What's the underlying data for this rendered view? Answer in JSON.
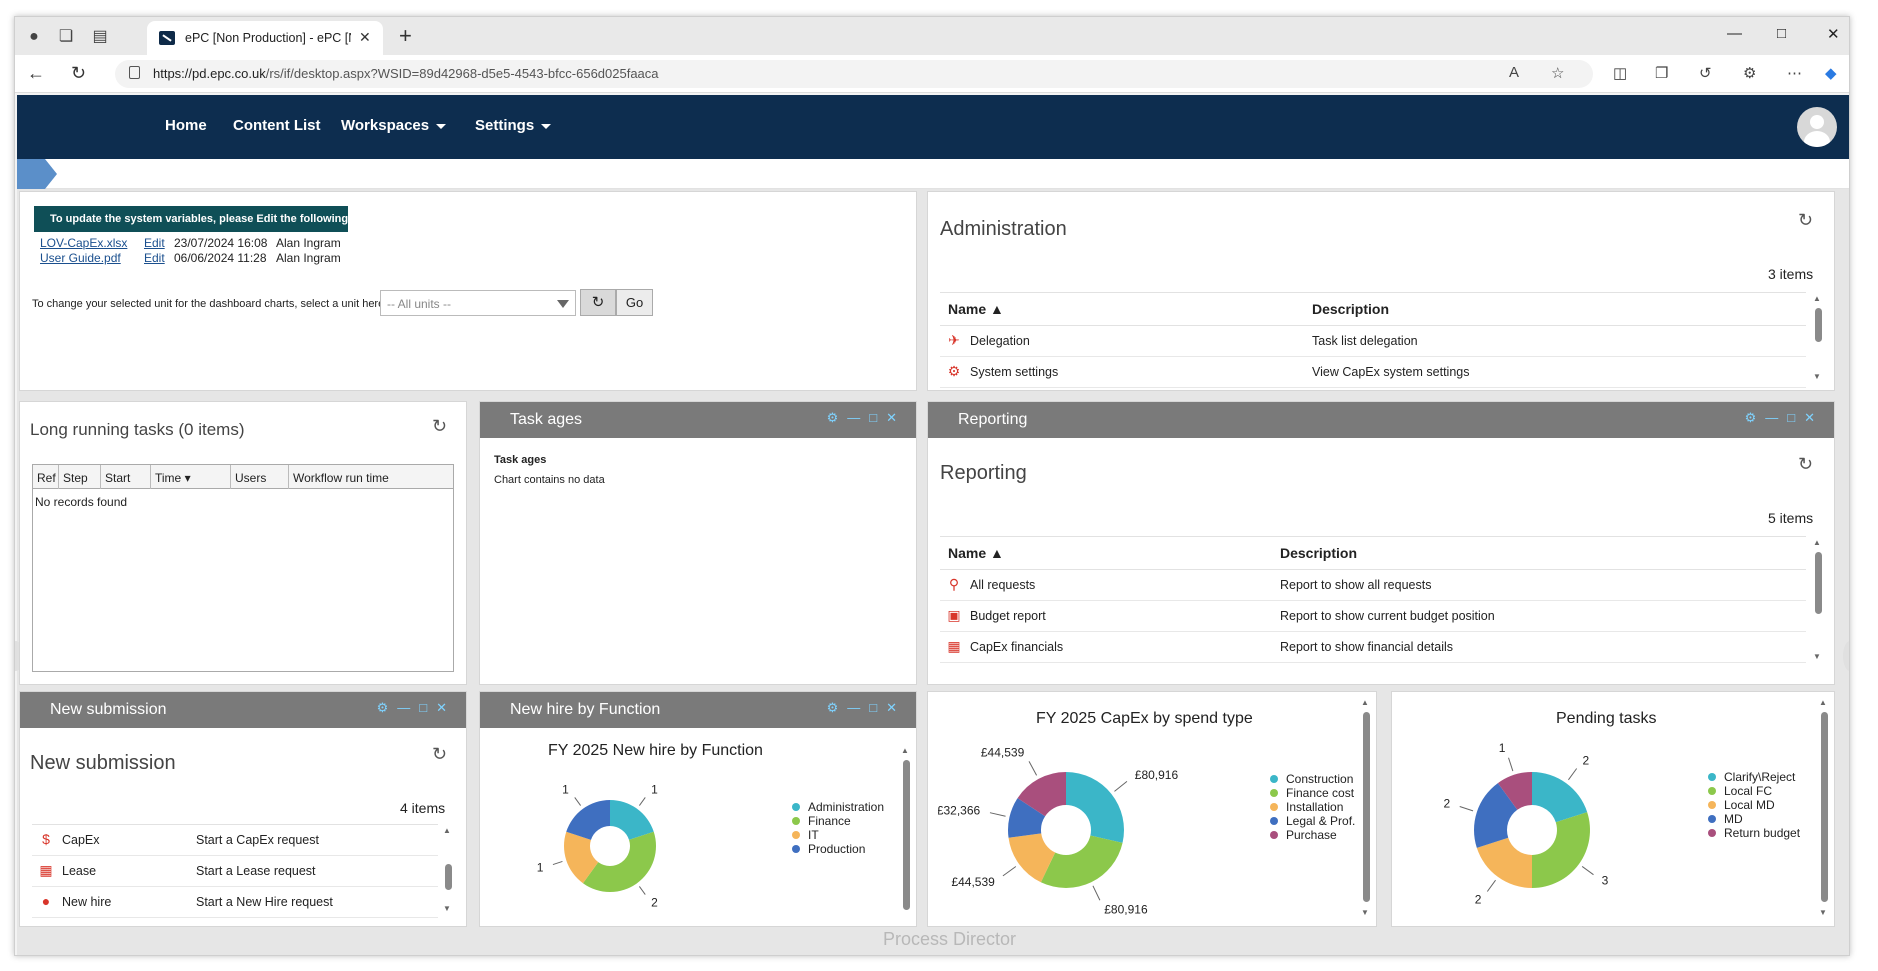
{
  "browser": {
    "tab_title": "ePC [Non Production] - ePC [Non Production]",
    "url_prefix": "https://pd.epc.co.uk",
    "url_path": "/rs/if/desktop.aspx?WSID=89d42968-d5e5-4543-bfcc-656d025faaca"
  },
  "nav": {
    "home": "Home",
    "content_list": "Content List",
    "workspaces": "Workspaces",
    "settings": "Settings"
  },
  "system_vars": {
    "banner": "To update the system variables, please Edit the following files:",
    "files": [
      {
        "name": "LOV-CapEx.xlsx",
        "action": "Edit",
        "date": "23/07/2024 16:08",
        "user": "Alan Ingram"
      },
      {
        "name": "User Guide.pdf",
        "action": "Edit",
        "date": "06/06/2024 11:28",
        "user": "Alan Ingram"
      }
    ],
    "unit_label": "To change your selected unit for the dashboard charts, select a unit here:",
    "unit_value": "-- All units --",
    "go": "Go"
  },
  "administration": {
    "title": "Administration",
    "count": "3 items",
    "col_name": "Name",
    "col_desc": "Description",
    "rows": [
      {
        "name": "Delegation",
        "desc": "Task list delegation"
      },
      {
        "name": "System settings",
        "desc": "View CapEx system settings"
      }
    ]
  },
  "long_running": {
    "title": "Long running tasks (0 items)",
    "cols": [
      "Ref",
      "Step",
      "Start",
      "Time",
      "Users",
      "Workflow run time"
    ],
    "empty": "No records found"
  },
  "task_ages": {
    "header": "Task ages",
    "title": "Task ages",
    "empty": "Chart contains no data"
  },
  "reporting": {
    "header": "Reporting",
    "title": "Reporting",
    "count": "5 items",
    "col_name": "Name",
    "col_desc": "Description",
    "rows": [
      {
        "name": "All requests",
        "desc": "Report to show all requests"
      },
      {
        "name": "Budget report",
        "desc": "Report to show current budget position"
      },
      {
        "name": "CapEx financials",
        "desc": "Report to show financial details"
      }
    ]
  },
  "new_submission": {
    "header": "New submission",
    "title": "New submission",
    "count": "4 items",
    "rows": [
      {
        "name": "CapEx",
        "desc": "Start a CapEx request"
      },
      {
        "name": "Lease",
        "desc": "Start a Lease request"
      },
      {
        "name": "New hire",
        "desc": "Start a New Hire request"
      }
    ]
  },
  "new_hire_panel": {
    "header": "New hire by Function"
  },
  "footer_brand": "Process Director",
  "colors": {
    "navy": "#0d2d4f",
    "teal": "#3bb6c8",
    "green": "#8cc84b",
    "orange": "#f5b55a",
    "blue": "#3f6fc0",
    "purple": "#a94f7d"
  },
  "chart_data": [
    {
      "type": "pie",
      "title": "FY 2025 New hire by Function",
      "categories": [
        "Administration",
        "Finance",
        "IT",
        "Production"
      ],
      "values": [
        1,
        2,
        1,
        1
      ],
      "labels": [
        "1",
        "2",
        "1",
        "1"
      ],
      "legend": "right",
      "donut": true
    },
    {
      "type": "pie",
      "title": "FY 2025 CapEx by spend type",
      "categories": [
        "Construction",
        "Finance cost",
        "Installation",
        "Legal & Prof.",
        "Purchase"
      ],
      "values": [
        80916,
        80916,
        44539,
        32366,
        44539
      ],
      "labels": [
        "£80,916",
        "£80,916",
        "£44,539",
        "£32,366",
        "£44,539"
      ],
      "legend": "right",
      "donut": true
    },
    {
      "type": "pie",
      "title": "Pending tasks",
      "categories": [
        "Clarify\\Reject",
        "Local FC",
        "Local MD",
        "MD",
        "Return budget"
      ],
      "values": [
        2,
        3,
        2,
        2,
        1
      ],
      "labels": [
        "2",
        "3",
        "2",
        "2",
        "1"
      ],
      "legend": "right",
      "donut": true
    }
  ]
}
